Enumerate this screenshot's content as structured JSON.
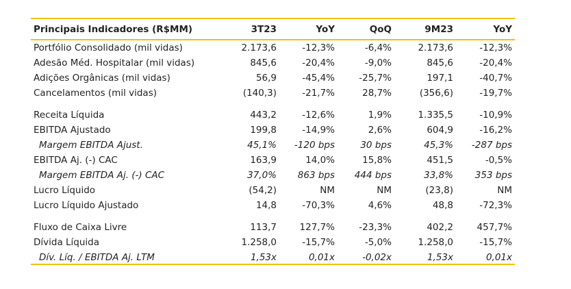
{
  "table": {
    "header": [
      "Principais Indicadores (R$MM)",
      "3T23",
      "YoY",
      "QoQ",
      "9M23",
      "YoY"
    ],
    "groups": [
      [
        [
          "Portfólio Consolidado (mil vidas)",
          "2.173,6",
          "-12,3%",
          "-6,4%",
          "2.173,6",
          "-12,3%"
        ],
        [
          "Adesão Méd. Hospitalar (mil vidas)",
          "845,6",
          "-20,4%",
          "-9,0%",
          "845,6",
          "-20,4%"
        ],
        [
          "Adições Orgânicas (mil vidas)",
          "56,9",
          "-45,4%",
          "-25,7%",
          "197,1",
          "-40,7%"
        ],
        [
          "Cancelamentos (mil vidas)",
          "(140,3)",
          "-21,7%",
          "28,7%",
          "(356,6)",
          "-19,7%"
        ]
      ],
      [
        [
          "Receita Líquida",
          "443,2",
          "-12,6%",
          "1,9%",
          "1.335,5",
          "-10,9%"
        ],
        [
          "EBITDA Ajustado",
          "199,8",
          "-14,9%",
          "2,6%",
          "604,9",
          "-16,2%"
        ],
        [
          "Margem EBITDA Ajust.",
          "45,1%",
          "-120 bps",
          "30 bps",
          "45,3%",
          "-287 bps"
        ],
        [
          "EBITDA Aj. (-) CAC",
          "163,9",
          "14,0%",
          "15,8%",
          "451,5",
          "-0,5%"
        ],
        [
          "Margem EBITDA Aj. (-) CAC",
          "37,0%",
          "863 bps",
          "444 bps",
          "33,8%",
          "353 bps"
        ],
        [
          "Lucro Líquido",
          "(54,2)",
          "NM",
          "NM",
          "(23,8)",
          "NM"
        ],
        [
          "Lucro Líquido Ajustado",
          "14,8",
          "-70,3%",
          "4,6%",
          "48,8",
          "-72,3%"
        ]
      ],
      [
        [
          "Fluxo de Caixa Livre",
          "113,7",
          "127,7%",
          "-23,3%",
          "402,2",
          "457,7%"
        ],
        [
          "Dívida Líquida",
          "1.258,0",
          "-15,7%",
          "-5,0%",
          "1.258,0",
          "-15,7%"
        ],
        [
          "Dív. Líq. / EBITDA Aj. LTM",
          "1,53x",
          "0,01x",
          "-0,02x",
          "1,53x",
          "0,01x"
        ]
      ]
    ]
  }
}
